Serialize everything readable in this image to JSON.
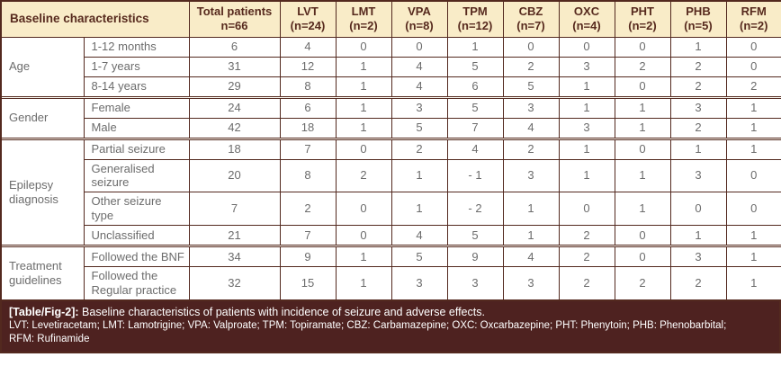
{
  "table": {
    "header": {
      "baseline_label": "Baseline characteristics",
      "columns": [
        {
          "line1": "Total patients",
          "line2": "n=66"
        },
        {
          "line1": "LVT",
          "line2": "(n=24)"
        },
        {
          "line1": "LMT",
          "line2": "(n=2)"
        },
        {
          "line1": "VPA",
          "line2": "(n=8)"
        },
        {
          "line1": "TPM",
          "line2": "(n=12)"
        },
        {
          "line1": "CBZ",
          "line2": "(n=7)"
        },
        {
          "line1": "OXC",
          "line2": "(n=4)"
        },
        {
          "line1": "PHT",
          "line2": "(n=2)"
        },
        {
          "line1": "PHB",
          "line2": "(n=5)"
        },
        {
          "line1": "RFM",
          "line2": "(n=2)"
        }
      ]
    },
    "groups": [
      {
        "label": "Age",
        "rows": [
          {
            "label": "1-12 months",
            "values": [
              "6",
              "4",
              "0",
              "0",
              "1",
              "0",
              "0",
              "0",
              "1",
              "0"
            ]
          },
          {
            "label": "1-7 years",
            "values": [
              "31",
              "12",
              "1",
              "4",
              "5",
              "2",
              "3",
              "2",
              "2",
              "0"
            ]
          },
          {
            "label": "8-14 years",
            "values": [
              "29",
              "8",
              "1",
              "4",
              "6",
              "5",
              "1",
              "0",
              "2",
              "2"
            ]
          }
        ]
      },
      {
        "label": "Gender",
        "rows": [
          {
            "label": "Female",
            "values": [
              "24",
              "6",
              "1",
              "3",
              "5",
              "3",
              "1",
              "1",
              "3",
              "1"
            ]
          },
          {
            "label": "Male",
            "values": [
              "42",
              "18",
              "1",
              "5",
              "7",
              "4",
              "3",
              "1",
              "2",
              "1"
            ]
          }
        ]
      },
      {
        "label": "Epilepsy diagnosis",
        "rows": [
          {
            "label": "Partial seizure",
            "values": [
              "18",
              "7",
              "0",
              "2",
              "4",
              "2",
              "1",
              "0",
              "1",
              "1"
            ]
          },
          {
            "label": "Generalised seizure",
            "values": [
              "20",
              "8",
              "2",
              "1",
              "- 1",
              "3",
              "1",
              "1",
              "3",
              "0"
            ]
          },
          {
            "label": "Other seizure type",
            "values": [
              "7",
              "2",
              "0",
              "1",
              "- 2",
              "1",
              "0",
              "1",
              "0",
              "0"
            ]
          },
          {
            "label": "Unclassified",
            "values": [
              "21",
              "7",
              "0",
              "4",
              "5",
              "1",
              "2",
              "0",
              "1",
              "1"
            ]
          }
        ]
      },
      {
        "label": "Treatment guidelines",
        "rows": [
          {
            "label": "Followed the BNF",
            "values": [
              "34",
              "9",
              "1",
              "5",
              "9",
              "4",
              "2",
              "0",
              "3",
              "1"
            ]
          },
          {
            "label": "Followed the Regular practice",
            "values": [
              "32",
              "15",
              "1",
              "3",
              "3",
              "3",
              "2",
              "2",
              "2",
              "1"
            ]
          }
        ]
      }
    ]
  },
  "caption": {
    "tag": "[Table/Fig-2]:",
    "text": "Baseline characteristics of patients with incidence of seizure and adverse effects.",
    "abbreviations_line1": "LVT: Levetiracetam; LMT: Lamotrigine; VPA: Valproate; TPM: Topiramate; CBZ: Carbamazepine; OXC: Oxcarbazepine; PHT: Phenytoin; PHB: Phenobarbital;",
    "abbreviations_line2": "RFM: Rufinamide"
  },
  "colors": {
    "header_bg": "#f9ecc8",
    "border": "#53291f",
    "caption_bg": "#4e2220",
    "body_text": "#6c6c6c",
    "header_text": "#572a1e",
    "caption_text": "#ffffff"
  }
}
